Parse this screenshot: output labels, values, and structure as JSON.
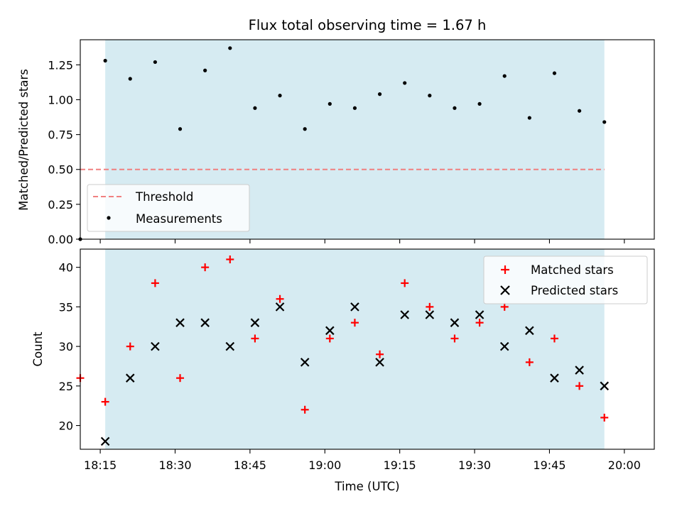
{
  "chart_data": [
    {
      "type": "scatter",
      "title": "Flux total observing time = 1.67 h",
      "xlabel": "",
      "ylabel": "Matched/Predicted stars",
      "ylim": [
        0,
        1.43
      ],
      "yticks": [
        "0.00",
        "0.25",
        "0.50",
        "0.75",
        "1.00",
        "1.25"
      ],
      "ytick_values": [
        0,
        0.25,
        0.5,
        0.75,
        1.0,
        1.25
      ],
      "xlim_minutes": [
        0,
        115
      ],
      "shaded_span_minutes": [
        5,
        105
      ],
      "shade_color": "#add8e6",
      "threshold": {
        "name": "Threshold",
        "value": 0.5,
        "x_range_minutes": [
          0,
          105
        ],
        "color": "#f08080"
      },
      "series": [
        {
          "name": "Measurements",
          "color": "#000000",
          "x_minutes": [
            0,
            5,
            10,
            15,
            20,
            25,
            30,
            35,
            40,
            45,
            50,
            55,
            60,
            65,
            70,
            75,
            80,
            85,
            90,
            95,
            100,
            105
          ],
          "values": [
            0.0,
            1.28,
            1.15,
            1.27,
            0.79,
            1.21,
            1.37,
            0.94,
            1.03,
            0.79,
            0.97,
            0.94,
            1.04,
            1.12,
            1.03,
            0.94,
            0.97,
            1.17,
            0.87,
            1.19,
            0.92,
            0.84
          ]
        }
      ],
      "legend": {
        "position": "lower-left",
        "entries": [
          "Threshold",
          "Measurements"
        ]
      }
    },
    {
      "type": "scatter",
      "title": "",
      "xlabel": "Time (UTC)",
      "ylabel": "Count",
      "ylim": [
        17,
        42.3
      ],
      "yticks": [
        "20",
        "25",
        "30",
        "35",
        "40"
      ],
      "ytick_values": [
        20,
        25,
        30,
        35,
        40
      ],
      "xlim_minutes": [
        0,
        115
      ],
      "x_origin_time": "18:11",
      "xticks": [
        "18:15",
        "18:30",
        "18:45",
        "19:00",
        "19:15",
        "19:30",
        "19:45",
        "20:00"
      ],
      "xtick_minutes": [
        4,
        19,
        34,
        49,
        64,
        79,
        94,
        109
      ],
      "shaded_span_minutes": [
        5,
        105
      ],
      "shade_color": "#add8e6",
      "series": [
        {
          "name": "Matched stars",
          "marker": "plus",
          "color": "#ff0000",
          "x_minutes": [
            0,
            5,
            10,
            15,
            20,
            25,
            30,
            35,
            40,
            45,
            50,
            55,
            60,
            65,
            70,
            75,
            80,
            85,
            90,
            95,
            100,
            105
          ],
          "values": [
            26,
            23,
            30,
            38,
            26,
            40,
            41,
            31,
            36,
            22,
            31,
            33,
            29,
            38,
            35,
            31,
            33,
            35,
            28,
            31,
            25,
            21
          ]
        },
        {
          "name": "Predicted stars",
          "marker": "x",
          "color": "#000000",
          "x_minutes": [
            5,
            10,
            15,
            20,
            25,
            30,
            35,
            40,
            45,
            50,
            55,
            60,
            65,
            70,
            75,
            80,
            85,
            90,
            95,
            100,
            105
          ],
          "values": [
            18,
            26,
            30,
            33,
            33,
            30,
            33,
            35,
            28,
            32,
            35,
            28,
            34,
            34,
            33,
            34,
            30,
            32,
            26,
            27,
            25
          ]
        }
      ],
      "legend": {
        "position": "upper-right",
        "entries": [
          "Matched stars",
          "Predicted stars"
        ]
      }
    }
  ]
}
